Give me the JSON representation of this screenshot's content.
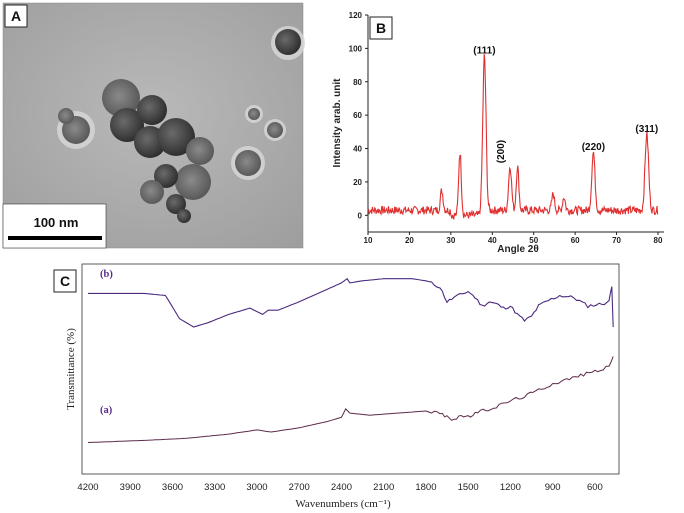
{
  "panels": {
    "a": "A",
    "b": "B",
    "c": "C"
  },
  "tem": {
    "scale_label": "100 nm"
  },
  "chart_data": [
    {
      "type": "line",
      "panel": "B",
      "title": "",
      "xlabel": "Angle 2θ",
      "ylabel": "Intensity arab. unit",
      "xlim": [
        10,
        80
      ],
      "ylim": [
        -10,
        120
      ],
      "xticks": [
        10,
        20,
        30,
        40,
        50,
        60,
        70,
        80
      ],
      "yticks": [
        0,
        20,
        40,
        60,
        80,
        100,
        120
      ],
      "series_color": "#e03030",
      "baseline": 3,
      "peaks": [
        {
          "x": 27.8,
          "y": 12,
          "w": 0.45
        },
        {
          "x": 32.2,
          "y": 38,
          "w": 0.45
        },
        {
          "x": 38.1,
          "y": 93,
          "w": 0.55
        },
        {
          "x": 44.3,
          "y": 27,
          "w": 0.5
        },
        {
          "x": 46.1,
          "y": 26,
          "w": 0.45
        },
        {
          "x": 54.7,
          "y": 10,
          "w": 0.45
        },
        {
          "x": 57.3,
          "y": 8,
          "w": 0.45
        },
        {
          "x": 64.4,
          "y": 35,
          "w": 0.55
        },
        {
          "x": 77.3,
          "y": 46,
          "w": 0.6
        }
      ],
      "annotations": [
        {
          "text": "(111)",
          "x": 38.1,
          "y": 97
        },
        {
          "text": "(200)",
          "x": 44.3,
          "y": 31,
          "rotate": -90
        },
        {
          "text": "(220)",
          "x": 64.4,
          "y": 39
        },
        {
          "text": "(311)",
          "x": 77.3,
          "y": 50
        }
      ]
    },
    {
      "type": "line",
      "panel": "C",
      "title": "",
      "xlabel": "Wavenumbers (cm⁻¹)",
      "ylabel": "Transmittance (%)",
      "xlim": [
        4200,
        450
      ],
      "ylim": [
        0,
        100
      ],
      "xticks": [
        4200,
        3900,
        3600,
        3300,
        3000,
        2700,
        2400,
        2100,
        1800,
        1500,
        1200,
        900,
        600
      ],
      "series": [
        {
          "name": "(b)",
          "color": "#4b2a7f",
          "points": [
            [
              4200,
              86
            ],
            [
              3800,
              86
            ],
            [
              3650,
              85
            ],
            [
              3550,
              74
            ],
            [
              3450,
              70
            ],
            [
              3350,
              72
            ],
            [
              3200,
              76
            ],
            [
              3050,
              79
            ],
            [
              2960,
              76
            ],
            [
              2920,
              78
            ],
            [
              2850,
              78
            ],
            [
              2700,
              82
            ],
            [
              2500,
              88
            ],
            [
              2400,
              91
            ],
            [
              2360,
              93
            ],
            [
              2340,
              91
            ],
            [
              2250,
              92
            ],
            [
              2100,
              93
            ],
            [
              1900,
              93
            ],
            [
              1800,
              92
            ],
            [
              1700,
              89
            ],
            [
              1650,
              82
            ],
            [
              1600,
              84
            ],
            [
              1500,
              87
            ],
            [
              1450,
              84
            ],
            [
              1400,
              80
            ],
            [
              1350,
              82
            ],
            [
              1300,
              81
            ],
            [
              1250,
              79
            ],
            [
              1200,
              80
            ],
            [
              1150,
              76
            ],
            [
              1100,
              73
            ],
            [
              1050,
              75
            ],
            [
              1000,
              80
            ],
            [
              950,
              82
            ],
            [
              850,
              85
            ],
            [
              750,
              84
            ],
            [
              650,
              80
            ],
            [
              550,
              81
            ],
            [
              500,
              82
            ],
            [
              480,
              90
            ],
            [
              470,
              70
            ]
          ]
        },
        {
          "name": "(a)",
          "color": "#5c2a4a",
          "points": [
            [
              4200,
              15
            ],
            [
              3800,
              16
            ],
            [
              3500,
              17
            ],
            [
              3200,
              19
            ],
            [
              3000,
              21
            ],
            [
              2900,
              20
            ],
            [
              2700,
              22
            ],
            [
              2500,
              25
            ],
            [
              2400,
              27
            ],
            [
              2370,
              31
            ],
            [
              2340,
              29
            ],
            [
              2200,
              28
            ],
            [
              2000,
              29
            ],
            [
              1800,
              30
            ],
            [
              1700,
              29
            ],
            [
              1650,
              27
            ],
            [
              1600,
              26
            ],
            [
              1550,
              28
            ],
            [
              1500,
              27
            ],
            [
              1450,
              29
            ],
            [
              1300,
              32
            ],
            [
              1200,
              35
            ],
            [
              1100,
              37
            ],
            [
              1000,
              40
            ],
            [
              900,
              43
            ],
            [
              800,
              45
            ],
            [
              700,
              47
            ],
            [
              600,
              49
            ],
            [
              500,
              51
            ],
            [
              470,
              56
            ]
          ]
        }
      ]
    }
  ]
}
